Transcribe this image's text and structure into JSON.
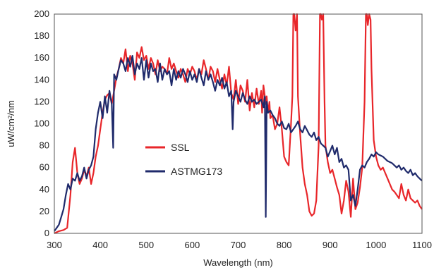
{
  "chart_data": {
    "type": "line",
    "xlabel": "Wavelength (nm)",
    "ylabel": "uW/cm²/nm",
    "xlim": [
      300,
      1100
    ],
    "ylim": [
      0,
      200
    ],
    "xticks": [
      300,
      400,
      500,
      600,
      700,
      800,
      900,
      1000,
      1100
    ],
    "yticks": [
      0,
      20,
      40,
      60,
      80,
      100,
      120,
      140,
      160,
      180,
      200
    ],
    "grid": false,
    "legend": "center-left",
    "series": [
      {
        "name": "SSL",
        "color": "#e8262a",
        "x": [
          300,
          310,
          320,
          328,
          335,
          340,
          345,
          350,
          355,
          360,
          365,
          370,
          375,
          380,
          385,
          390,
          395,
          400,
          405,
          410,
          415,
          420,
          425,
          430,
          435,
          440,
          445,
          450,
          455,
          460,
          465,
          470,
          475,
          480,
          485,
          490,
          495,
          500,
          505,
          510,
          515,
          520,
          525,
          530,
          535,
          540,
          545,
          550,
          555,
          560,
          565,
          570,
          575,
          580,
          585,
          590,
          595,
          600,
          605,
          610,
          615,
          620,
          625,
          630,
          635,
          640,
          645,
          650,
          655,
          660,
          665,
          670,
          675,
          680,
          685,
          690,
          695,
          700,
          705,
          710,
          715,
          720,
          725,
          730,
          735,
          740,
          745,
          750,
          752,
          755,
          758,
          760,
          762,
          765,
          768,
          770,
          775,
          780,
          785,
          790,
          795,
          800,
          805,
          810,
          815,
          818,
          820,
          822,
          825,
          828,
          830,
          835,
          840,
          845,
          850,
          855,
          860,
          865,
          870,
          875,
          878,
          880,
          882,
          885,
          888,
          890,
          895,
          900,
          905,
          910,
          915,
          920,
          925,
          930,
          935,
          940,
          945,
          950,
          955,
          960,
          965,
          970,
          975,
          978,
          980,
          982,
          985,
          988,
          990,
          995,
          1000,
          1005,
          1010,
          1015,
          1020,
          1025,
          1030,
          1035,
          1040,
          1045,
          1050,
          1055,
          1060,
          1065,
          1070,
          1075,
          1080,
          1085,
          1090,
          1095,
          1100
        ],
        "y": [
          0,
          2,
          3,
          5,
          35,
          65,
          78,
          55,
          45,
          50,
          58,
          52,
          60,
          45,
          55,
          70,
          80,
          95,
          110,
          122,
          126,
          128,
          118,
          130,
          142,
          150,
          160,
          155,
          168,
          148,
          162,
          155,
          140,
          165,
          160,
          170,
          158,
          162,
          150,
          160,
          155,
          145,
          158,
          148,
          152,
          150,
          145,
          160,
          150,
          155,
          148,
          142,
          150,
          145,
          138,
          150,
          145,
          152,
          148,
          140,
          150,
          145,
          158,
          150,
          140,
          152,
          148,
          138,
          150,
          140,
          132,
          145,
          135,
          152,
          128,
          122,
          140,
          118,
          135,
          130,
          120,
          140,
          112,
          128,
          115,
          132,
          118,
          130,
          110,
          135,
          125,
          118,
          125,
          110,
          120,
          105,
          108,
          95,
          100,
          115,
          95,
          70,
          65,
          62,
          100,
          125,
          200,
          200,
          185,
          200,
          125,
          90,
          60,
          45,
          35,
          20,
          16,
          18,
          30,
          80,
          200,
          200,
          195,
          200,
          120,
          80,
          65,
          55,
          58,
          50,
          42,
          35,
          18,
          30,
          48,
          38,
          15,
          50,
          22,
          28,
          42,
          60,
          120,
          200,
          200,
          190,
          200,
          195,
          150,
          85,
          70,
          62,
          58,
          60,
          55,
          50,
          45,
          40,
          38,
          35,
          32,
          45,
          35,
          30,
          40,
          32,
          30,
          28,
          30,
          25,
          22
        ]
      },
      {
        "name": "ASTMG173",
        "color": "#1f2a6b",
        "x": [
          300,
          305,
          310,
          315,
          320,
          325,
          330,
          335,
          340,
          345,
          350,
          355,
          360,
          365,
          370,
          375,
          380,
          385,
          390,
          395,
          400,
          405,
          410,
          415,
          420,
          425,
          428,
          430,
          435,
          440,
          445,
          450,
          455,
          460,
          465,
          470,
          475,
          480,
          485,
          490,
          495,
          500,
          505,
          510,
          515,
          520,
          525,
          530,
          535,
          540,
          545,
          550,
          555,
          560,
          565,
          570,
          575,
          580,
          585,
          590,
          595,
          600,
          605,
          610,
          615,
          620,
          625,
          630,
          635,
          640,
          645,
          650,
          655,
          660,
          665,
          670,
          675,
          680,
          685,
          688,
          690,
          695,
          700,
          705,
          710,
          715,
          720,
          725,
          730,
          735,
          740,
          745,
          750,
          755,
          758,
          760,
          762,
          765,
          770,
          775,
          780,
          785,
          790,
          795,
          800,
          805,
          810,
          815,
          820,
          825,
          830,
          835,
          840,
          845,
          850,
          855,
          860,
          865,
          870,
          875,
          880,
          885,
          890,
          895,
          900,
          905,
          910,
          915,
          920,
          925,
          930,
          935,
          940,
          945,
          950,
          955,
          960,
          965,
          970,
          975,
          980,
          985,
          990,
          995,
          1000,
          1005,
          1010,
          1015,
          1020,
          1025,
          1030,
          1035,
          1040,
          1045,
          1050,
          1055,
          1060,
          1065,
          1070,
          1075,
          1080,
          1085,
          1090,
          1095,
          1100
        ],
        "y": [
          2,
          5,
          8,
          15,
          22,
          35,
          45,
          40,
          50,
          48,
          55,
          48,
          52,
          60,
          50,
          58,
          62,
          70,
          95,
          110,
          120,
          105,
          125,
          110,
          130,
          118,
          78,
          145,
          140,
          150,
          158,
          155,
          148,
          160,
          152,
          162,
          145,
          155,
          150,
          160,
          140,
          158,
          142,
          155,
          148,
          150,
          138,
          155,
          140,
          150,
          145,
          148,
          135,
          150,
          140,
          148,
          142,
          150,
          145,
          138,
          148,
          140,
          145,
          138,
          150,
          142,
          135,
          148,
          140,
          145,
          138,
          130,
          140,
          135,
          142,
          132,
          138,
          125,
          130,
          95,
          120,
          130,
          125,
          120,
          128,
          122,
          118,
          125,
          120,
          122,
          118,
          120,
          122,
          115,
          125,
          15,
          120,
          110,
          112,
          108,
          105,
          100,
          98,
          102,
          96,
          95,
          100,
          92,
          95,
          98,
          102,
          95,
          92,
          98,
          94,
          90,
          88,
          92,
          85,
          88,
          82,
          80,
          78,
          70,
          75,
          80,
          72,
          78,
          65,
          68,
          60,
          62,
          58,
          30,
          35,
          25,
          40,
          58,
          62,
          60,
          65,
          68,
          72,
          70,
          74,
          72,
          71,
          70,
          68,
          66,
          65,
          64,
          62,
          60,
          62,
          58,
          60,
          57,
          55,
          58,
          53,
          55,
          52,
          50,
          48
        ]
      }
    ]
  }
}
